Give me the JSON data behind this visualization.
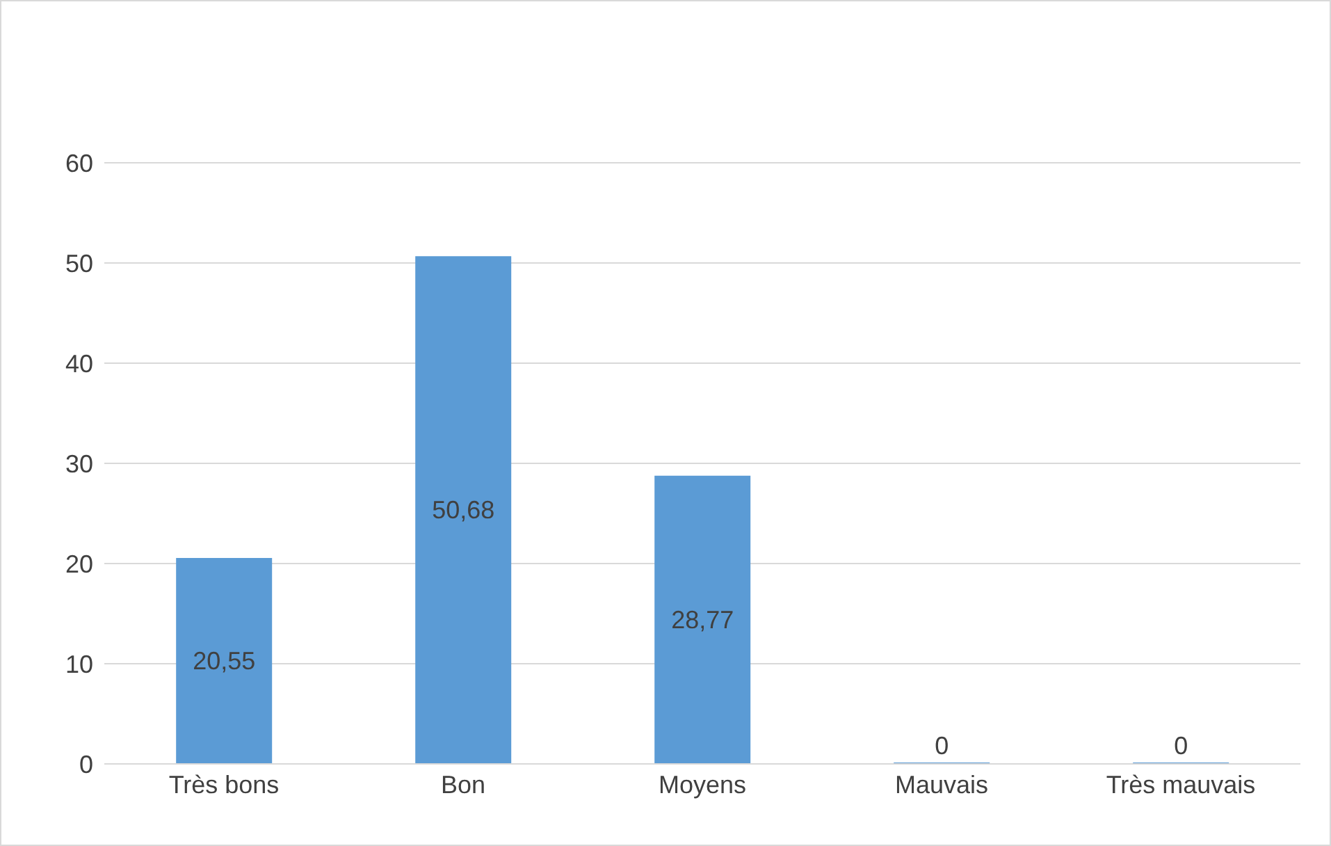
{
  "chart_data": {
    "type": "bar",
    "categories": [
      "Très bons",
      "Bon",
      "Moyens",
      "Mauvais",
      "Très mauvais"
    ],
    "values": [
      20.55,
      50.68,
      28.77,
      0,
      0
    ],
    "value_labels": [
      "20,55",
      "50,68",
      "28,77",
      "0",
      "0"
    ],
    "color": "#5b9bd5",
    "ylim": [
      0,
      60
    ],
    "yticks": [
      0,
      10,
      20,
      30,
      40,
      50,
      60
    ],
    "grid": "y"
  }
}
